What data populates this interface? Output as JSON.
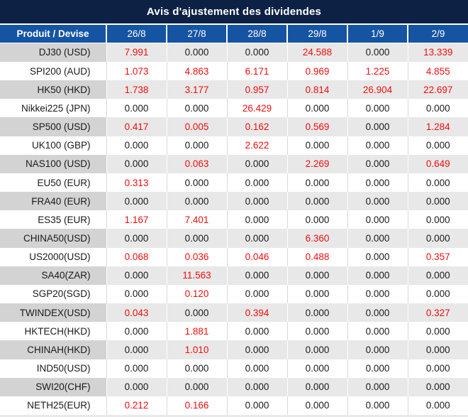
{
  "title": "Avis d'ajustement des dividendes",
  "colors": {
    "title_bg": "#0d2145",
    "header_bg": "#1554a3",
    "gray_row_bg": "#e8e8e8",
    "gray_row_label_bg": "#d3d3d3",
    "value_red": "#f20d0d",
    "value_black": "#1a1a1a"
  },
  "table": {
    "header": {
      "product_label": "Produit / Devise",
      "dates": [
        "26/8",
        "27/8",
        "28/8",
        "29/8",
        "1/9",
        "2/9"
      ]
    },
    "rows": [
      {
        "label": "DJ30 (USD)",
        "values": [
          "7.991",
          "0.000",
          "0.000",
          "24.588",
          "0.000",
          "13.339"
        ]
      },
      {
        "label": "SPI200 (AUD)",
        "values": [
          "1.073",
          "4.863",
          "6.171",
          "0.969",
          "1.225",
          "4.855"
        ]
      },
      {
        "label": "HK50 (HKD)",
        "values": [
          "1.738",
          "3.177",
          "0.957",
          "0.814",
          "26.904",
          "22.697"
        ]
      },
      {
        "label": "Nikkei225 (JPN)",
        "values": [
          "0.000",
          "0.000",
          "26.429",
          "0.000",
          "0.000",
          "0.000"
        ]
      },
      {
        "label": "SP500 (USD)",
        "values": [
          "0.417",
          "0.005",
          "0.162",
          "0.569",
          "0.000",
          "1.284"
        ]
      },
      {
        "label": "UK100 (GBP)",
        "values": [
          "0.000",
          "0.000",
          "2.622",
          "0.000",
          "0.000",
          "0.000"
        ]
      },
      {
        "label": "NAS100 (USD)",
        "values": [
          "0.000",
          "0.063",
          "0.000",
          "2.269",
          "0.000",
          "0.649"
        ]
      },
      {
        "label": "EU50 (EUR)",
        "values": [
          "0.313",
          "0.000",
          "0.000",
          "0.000",
          "0.000",
          "0.000"
        ]
      },
      {
        "label": "FRA40 (EUR)",
        "values": [
          "0.000",
          "0.000",
          "0.000",
          "0.000",
          "0.000",
          "0.000"
        ]
      },
      {
        "label": "ES35 (EUR)",
        "values": [
          "1.167",
          "7.401",
          "0.000",
          "0.000",
          "0.000",
          "0.000"
        ]
      },
      {
        "label": "CHINA50(USD)",
        "values": [
          "0.000",
          "0.000",
          "0.000",
          "6.360",
          "0.000",
          "0.000"
        ]
      },
      {
        "label": "US2000(USD)",
        "values": [
          "0.068",
          "0.036",
          "0.046",
          "0.488",
          "0.000",
          "0.357"
        ]
      },
      {
        "label": "SA40(ZAR)",
        "values": [
          "0.000",
          "11.563",
          "0.000",
          "0.000",
          "0.000",
          "0.000"
        ]
      },
      {
        "label": "SGP20(SGD)",
        "values": [
          "0.000",
          "0.120",
          "0.000",
          "0.000",
          "0.000",
          "0.000"
        ]
      },
      {
        "label": "TWINDEX(USD)",
        "values": [
          "0.043",
          "0.000",
          "0.394",
          "0.000",
          "0.000",
          "0.327"
        ]
      },
      {
        "label": "HKTECH(HKD)",
        "values": [
          "0.000",
          "1.881",
          "0.000",
          "0.000",
          "0.000",
          "0.000"
        ]
      },
      {
        "label": "CHINAH(HKD)",
        "values": [
          "0.000",
          "1.010",
          "0.000",
          "0.000",
          "0.000",
          "0.000"
        ]
      },
      {
        "label": "IND50(USD)",
        "values": [
          "0.000",
          "0.000",
          "0.000",
          "0.000",
          "0.000",
          "0.000"
        ]
      },
      {
        "label": "SWI20(CHF)",
        "values": [
          "0.000",
          "0.000",
          "0.000",
          "0.000",
          "0.000",
          "0.000"
        ]
      },
      {
        "label": "NETH25(EUR)",
        "values": [
          "0.212",
          "0.166",
          "0.000",
          "0.000",
          "0.000",
          "0.000"
        ]
      }
    ]
  }
}
